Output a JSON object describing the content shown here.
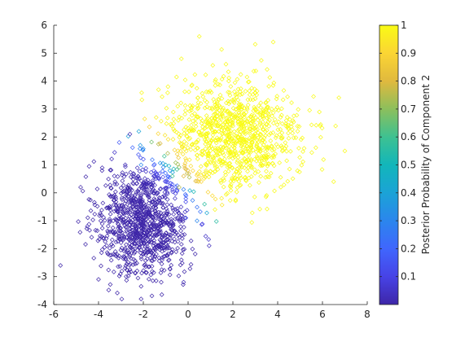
{
  "chart_data": {
    "type": "scatter",
    "title": "",
    "xlabel": "",
    "ylabel": "",
    "xlim": [
      -6,
      8
    ],
    "ylim": [
      -4,
      6
    ],
    "xticks": [
      "-6",
      "-4",
      "-2",
      "0",
      "2",
      "4",
      "6",
      "8"
    ],
    "yticks": [
      "-4",
      "-3",
      "-2",
      "-1",
      "0",
      "1",
      "2",
      "3",
      "4",
      "5",
      "6"
    ],
    "marker": "diamond-open",
    "colormap": "parula",
    "colorbar": {
      "label": "Posterior Probability of Component 2",
      "range": [
        0,
        1
      ],
      "ticks": [
        "0.1",
        "0.2",
        "0.3",
        "0.4",
        "0.5",
        "0.6",
        "0.7",
        "0.8",
        "0.9",
        "1"
      ]
    },
    "grid": false,
    "legend": "none",
    "clusters": [
      {
        "component": 1,
        "center": [
          -2,
          -1
        ],
        "sd": [
          1.0,
          1.0
        ],
        "count": 1000
      },
      {
        "component": 2,
        "center": [
          2,
          2
        ],
        "sd": [
          1.5,
          1.0
        ],
        "count": 1000
      }
    ],
    "series": [
      {
        "values": [
          {
            "x": -5.7,
            "y": -2.6,
            "p": 0.0
          },
          {
            "x": -4.8,
            "y": 0.2,
            "p": 0.0
          },
          {
            "x": -4.5,
            "y": -1.2,
            "p": 0.02
          },
          {
            "x": -4.0,
            "y": -3.1,
            "p": 0.0
          },
          {
            "x": -3.9,
            "y": -1.0,
            "p": 0.0
          },
          {
            "x": -2.6,
            "y": 2.1,
            "p": 0.02
          },
          {
            "x": -2.1,
            "y": -3.8,
            "p": 0.0
          },
          {
            "x": -1.6,
            "y": -1.0,
            "p": 0.0
          },
          {
            "x": -1.2,
            "y": -3.2,
            "p": 0.0
          },
          {
            "x": -0.3,
            "y": -2.4,
            "p": 0.0
          },
          {
            "x": -0.2,
            "y": -3.2,
            "p": 0.02
          },
          {
            "x": -2.2,
            "y": 2.2,
            "p": 0.4
          },
          {
            "x": -1.0,
            "y": 1.0,
            "p": 0.45
          },
          {
            "x": -0.7,
            "y": 0.6,
            "p": 0.6
          },
          {
            "x": -0.1,
            "y": -0.9,
            "p": 0.15
          },
          {
            "x": 0.4,
            "y": -1.0,
            "p": 0.3
          },
          {
            "x": -0.4,
            "y": 0.2,
            "p": 0.75
          },
          {
            "x": -0.2,
            "y": 0.6,
            "p": 0.8
          },
          {
            "x": 0.5,
            "y": 5.6,
            "p": 1.0
          },
          {
            "x": 3.8,
            "y": 5.4,
            "p": 1.0
          },
          {
            "x": 7.0,
            "y": 1.5,
            "p": 1.0
          },
          {
            "x": 6.5,
            "y": 0.4,
            "p": 1.0
          },
          {
            "x": 5.9,
            "y": 2.4,
            "p": 1.0
          },
          {
            "x": 1.2,
            "y": -0.6,
            "p": 0.99
          },
          {
            "x": -0.3,
            "y": 4.8,
            "p": 1.0
          },
          {
            "x": -2.1,
            "y": 1.0,
            "p": 0.3
          }
        ]
      }
    ]
  }
}
